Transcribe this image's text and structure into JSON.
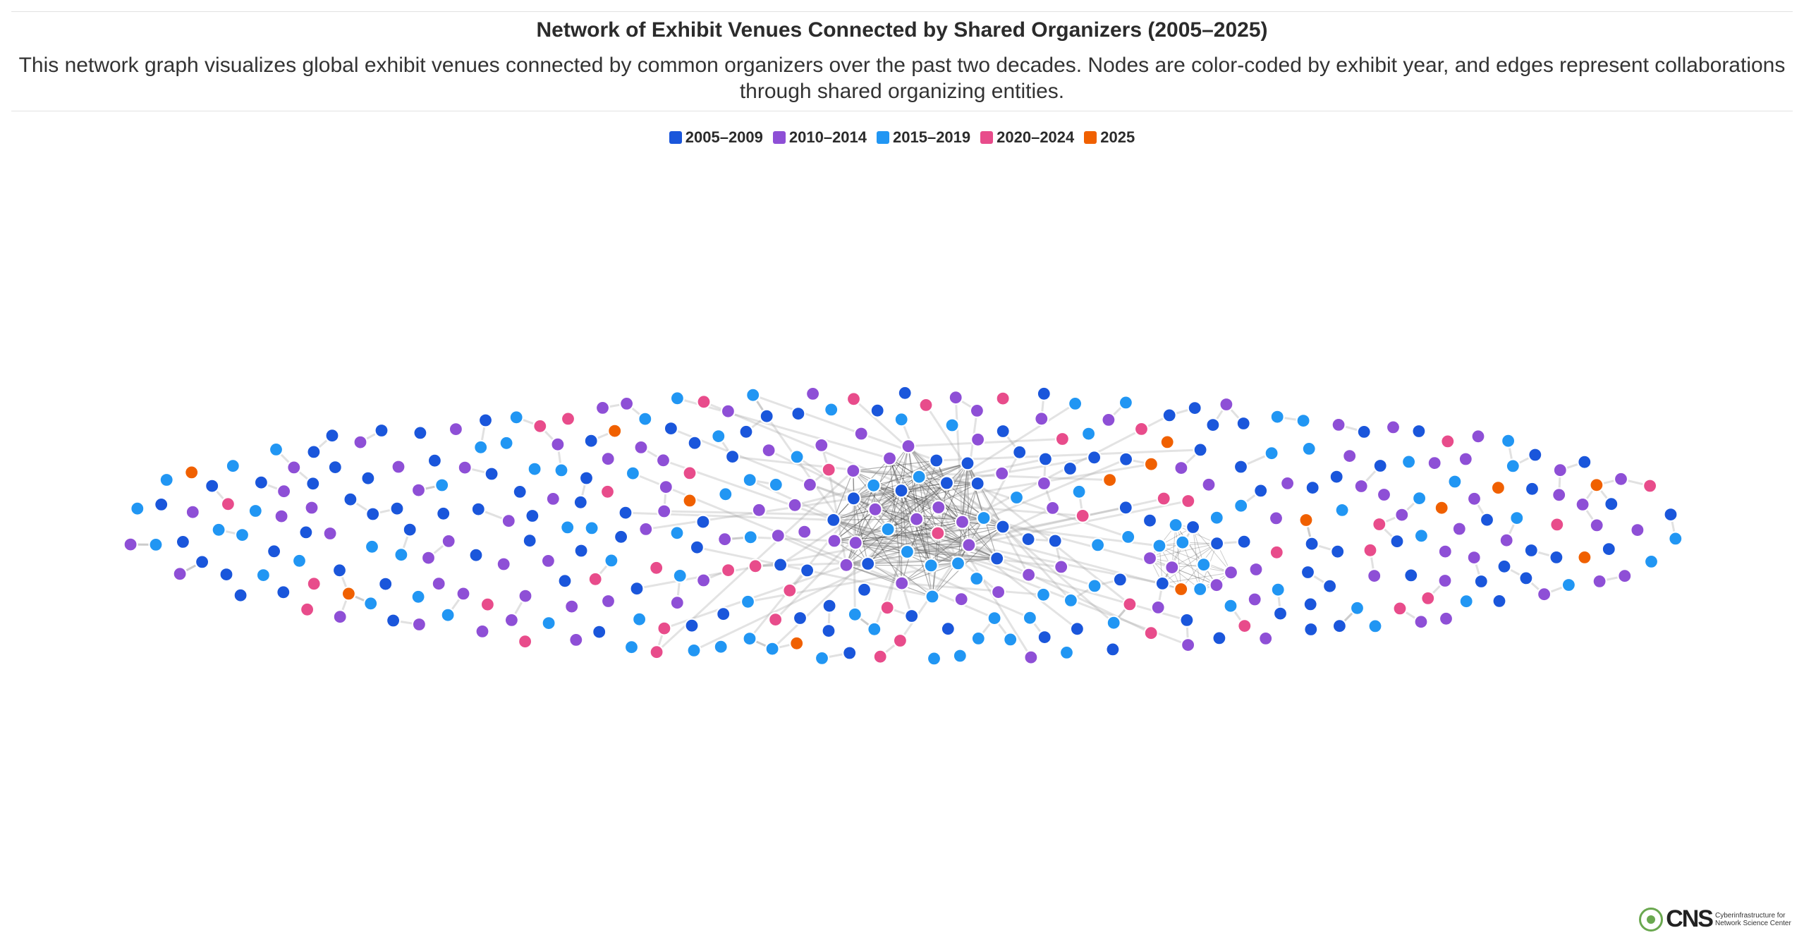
{
  "header": {
    "title": "Network of Exhibit Venues Connected by Shared Organizers (2005–2025)",
    "subtitle": "This network graph visualizes global exhibit venues connected by common organizers over the past two decades. Nodes are color-coded by exhibit year, and edges represent collaborations through shared organizing entities."
  },
  "legend": {
    "items": [
      {
        "label": "2005–2009",
        "color": "#1a56db"
      },
      {
        "label": "2010–2014",
        "color": "#8e4fd6"
      },
      {
        "label": "2015–2019",
        "color": "#2196f3"
      },
      {
        "label": "2020–2024",
        "color": "#e84c8b"
      },
      {
        "label": "2025",
        "color": "#f06000"
      }
    ]
  },
  "logo": {
    "acronym": "CNS",
    "name": "Cyberinfrastructure for Network Science Center"
  }
}
